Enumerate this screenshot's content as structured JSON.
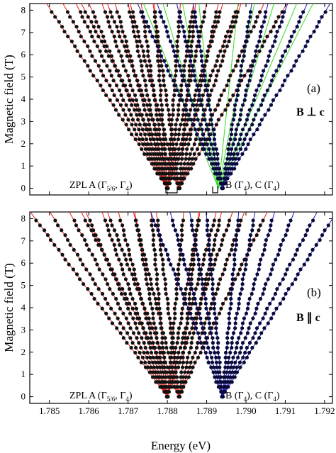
{
  "figure": {
    "x_title": "Energy (eV)",
    "y_title": "Magnetic field (T)",
    "x_tick_labels": [
      "1.785",
      "1.786",
      "1.787",
      "1.788",
      "1.789",
      "1.790",
      "1.791",
      "1.792"
    ],
    "y_tick_labels": [
      "0",
      "1",
      "2",
      "3",
      "4",
      "5",
      "6",
      "7",
      "8"
    ]
  },
  "panels": [
    {
      "id": "a",
      "label": "(a)",
      "field_label": "B ⊥ c",
      "zpl_a": {
        "pre": "ZPL A (Γ",
        "sub1": "5/6",
        "mid": ", Γ",
        "sub2": "4",
        "post": ")"
      },
      "zpl_bc": {
        "pre": "B (Γ",
        "sub1": "4",
        "mid": "), C (Γ",
        "sub2": "4",
        "post": ")"
      }
    },
    {
      "id": "b",
      "label": "(b)",
      "field_label": "B ∥ c",
      "zpl_a": {
        "pre": "ZPL A (Γ",
        "sub1": "5/6",
        "mid": ", Γ",
        "sub2": "4",
        "post": ")"
      },
      "zpl_bc": {
        "pre": "B (Γ",
        "sub1": "4",
        "mid": "), C (Γ",
        "sub2": "4",
        "post": ")"
      }
    }
  ],
  "colors": {
    "red": "#e8201a",
    "blue": "#1a1ab8",
    "green": "#33dd22",
    "dot": "#111111"
  },
  "chart_data": [
    {
      "type": "scatter",
      "panel": "a",
      "xlabel": "Energy (eV)",
      "ylabel": "Magnetic field (T)",
      "xlim": [
        1.7845,
        1.7922
      ],
      "ylim": [
        -0.3,
        8.3
      ],
      "origins": {
        "A1": 1.788,
        "A2": 1.7883,
        "B": 1.7893,
        "C": 1.7894
      },
      "series": [
        {
          "color": "red",
          "origin": 1.788,
          "slopes_meV_per_T": [
            -0.37,
            -0.32,
            -0.28,
            -0.24,
            -0.2,
            -0.16,
            -0.12,
            -0.08,
            -0.04,
            0.04,
            0.08,
            0.12,
            0.17,
            0.22
          ]
        },
        {
          "color": "red",
          "origin": 1.7883,
          "slopes_meV_per_T": [
            -0.3,
            -0.22,
            -0.15,
            -0.08,
            0.05,
            0.12,
            0.19,
            0.26,
            0.33
          ]
        },
        {
          "color": "blue",
          "origin": 1.7894,
          "slopes_meV_per_T": [
            -0.26,
            -0.2,
            -0.14,
            -0.09,
            0.09,
            0.14,
            0.2,
            0.26,
            0.33
          ]
        },
        {
          "color": "green",
          "origin": 1.7893,
          "slopes_meV_per_T": [
            -0.23,
            -0.17,
            -0.11,
            -0.06,
            0.06,
            0.11,
            0.17,
            0.24,
            0.29
          ]
        }
      ]
    },
    {
      "type": "scatter",
      "panel": "b",
      "xlabel": "Energy (eV)",
      "ylabel": "Magnetic field (T)",
      "xlim": [
        1.7845,
        1.7922
      ],
      "ylim": [
        -0.3,
        8.3
      ],
      "origins": {
        "A1": 1.788,
        "A2": 1.7883,
        "B": 1.7893,
        "C": 1.7894
      },
      "series": [
        {
          "color": "red",
          "origin": 1.788,
          "slopes_meV_per_T": [
            -0.42,
            -0.36,
            -0.3,
            -0.25,
            -0.2,
            -0.15,
            -0.1,
            -0.05,
            0.05,
            0.1,
            0.15,
            0.2
          ]
        },
        {
          "color": "red",
          "origin": 1.7883,
          "slopes_meV_per_T": [
            -0.3,
            -0.22,
            -0.14,
            -0.07,
            0.06,
            0.13,
            0.2,
            0.27
          ]
        },
        {
          "color": "blue",
          "origin": 1.7894,
          "slopes_meV_per_T": [
            -0.22,
            -0.16,
            -0.1,
            -0.05,
            0.05,
            0.1,
            0.16,
            0.22,
            0.29,
            0.35
          ]
        }
      ]
    }
  ]
}
